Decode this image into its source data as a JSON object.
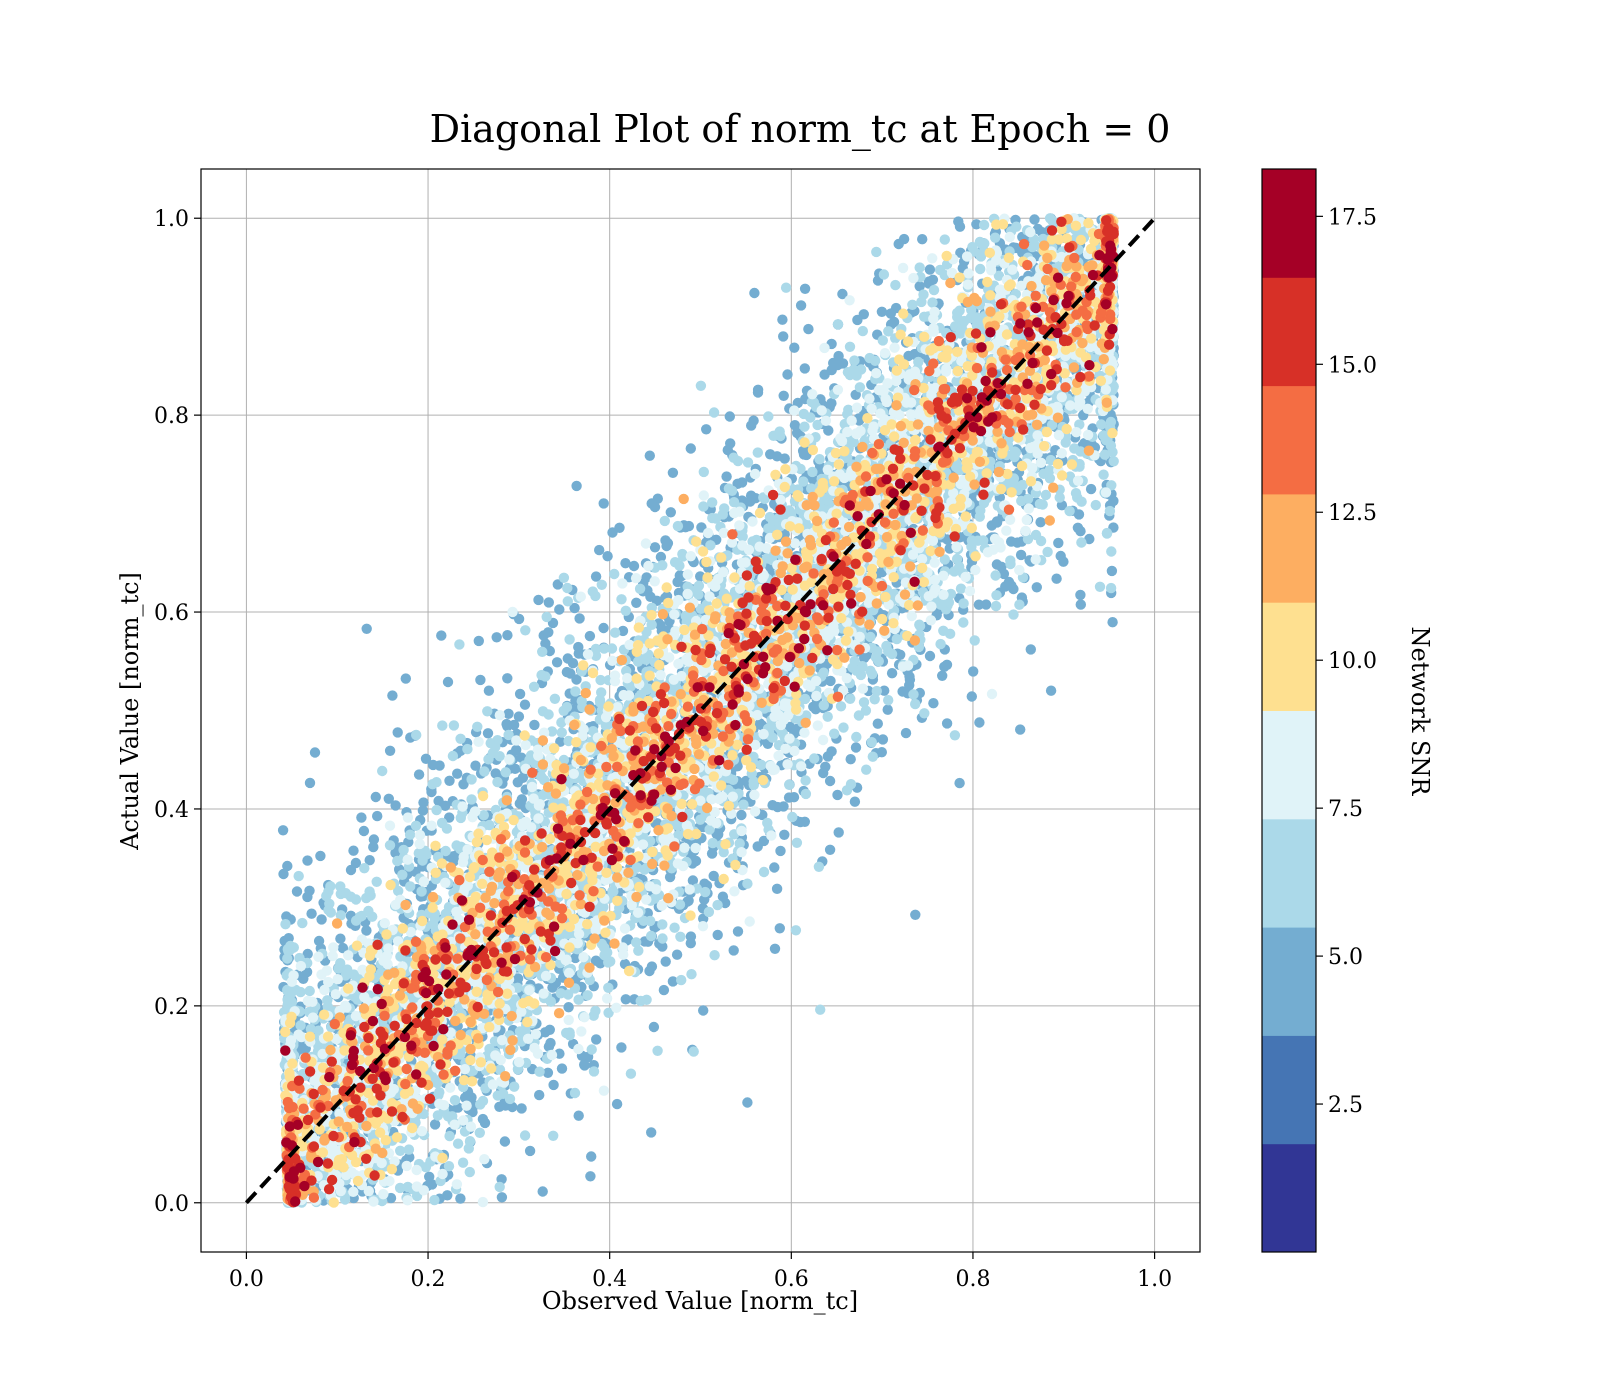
{
  "chart_data": {
    "type": "scatter",
    "title": "Diagonal Plot of norm_tc at Epoch = 0",
    "xlabel": "Observed Value [norm_tc]",
    "ylabel": "Actual Value [norm_tc]",
    "xlim": [
      -0.05,
      1.05
    ],
    "ylim": [
      -0.05,
      1.05
    ],
    "xticks": [
      0.0,
      0.2,
      0.4,
      0.6,
      0.8,
      1.0
    ],
    "xtick_labels": [
      "0.0",
      "0.2",
      "0.4",
      "0.6",
      "0.8",
      "1.0"
    ],
    "yticks": [
      0.0,
      0.2,
      0.4,
      0.6,
      0.8,
      1.0
    ],
    "ytick_labels": [
      "0.0",
      "0.2",
      "0.4",
      "0.6",
      "0.8",
      "1.0"
    ],
    "grid": true,
    "reference_line": {
      "x": [
        0.0,
        1.0
      ],
      "y": [
        0.0,
        1.0
      ],
      "style": "dashed",
      "color": "#000000"
    },
    "marker_color_by": "Network SNR",
    "point_count_estimate": 12000,
    "point_distribution": "dense band along y = x within |y - x| < 0.15 at higher SNR; lower-SNR points spread across y in [0, 1] for x between 0.03 and 0.95; blue points concentrated in top-left and bottom-right",
    "colorbar": {
      "label": "Network SNR",
      "range": [
        0.0,
        18.3
      ],
      "ticks": [
        2.5,
        5.0,
        7.5,
        10.0,
        12.5,
        15.0,
        17.5
      ],
      "tick_labels": [
        "2.5",
        "5.0",
        "7.5",
        "10.0",
        "12.5",
        "15.0",
        "17.5"
      ],
      "colormap": "RdYlBu_r (discrete, 10 levels)",
      "colors": [
        "#313695",
        "#4575b4",
        "#74add1",
        "#abd9e9",
        "#e0f3f8",
        "#fee090",
        "#fdae61",
        "#f46d43",
        "#d73027",
        "#a50026"
      ]
    }
  }
}
